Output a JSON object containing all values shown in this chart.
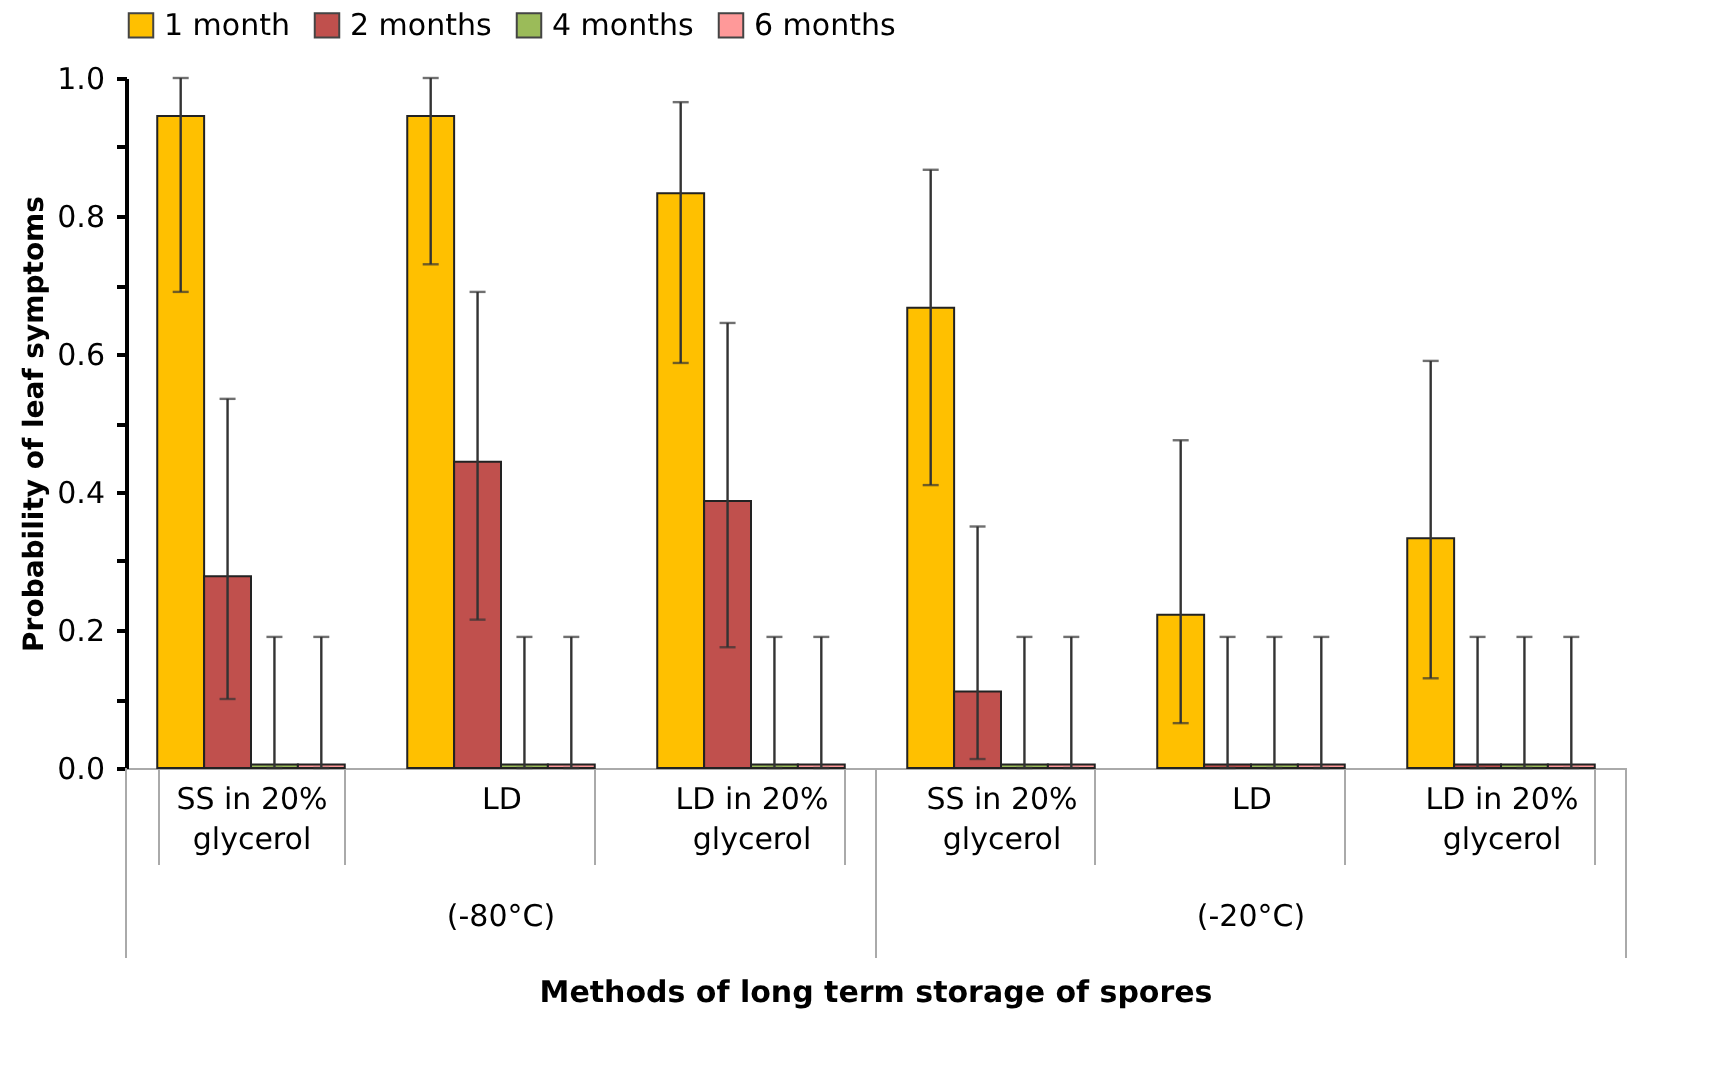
{
  "chart_data": {
    "type": "bar",
    "xlabel": "Methods of long term storage of spores",
    "ylabel": "Probability of leaf symptoms",
    "categories": [
      "SS in 20% glycerol",
      "LD",
      "LD in 20% glycerol",
      "SS in 20% glycerol",
      "LD",
      "LD in 20% glycerol"
    ],
    "annotations": [
      "(-80°C)",
      "(-20°C)"
    ],
    "series": [
      {
        "name": "1 month",
        "color": "#ffc000",
        "values": [
          0.945,
          0.945,
          0.833,
          0.667,
          0.222,
          0.333
        ],
        "errors": [
          [
            0.69,
            1.0
          ],
          [
            0.73,
            1.0
          ],
          [
            0.587,
            0.965
          ],
          [
            0.41,
            0.867
          ],
          [
            0.065,
            0.475
          ],
          [
            0.13,
            0.59
          ]
        ]
      },
      {
        "name": "2 months",
        "color": "#c0504d",
        "values": [
          0.278,
          0.444,
          0.387,
          0.111,
          0.005,
          0.005
        ],
        "errors": [
          [
            0.1,
            0.535
          ],
          [
            0.215,
            0.69
          ],
          [
            0.175,
            0.645
          ],
          [
            0.013,
            0.35
          ],
          [
            0,
            0.19
          ],
          [
            0,
            0.19
          ]
        ]
      },
      {
        "name": "4 months",
        "color": "#9bbb59",
        "values": [
          0.005,
          0.005,
          0.005,
          0.005,
          0.005,
          0.005
        ],
        "errors": [
          [
            0,
            0.19
          ],
          [
            0,
            0.19
          ],
          [
            0,
            0.19
          ],
          [
            0,
            0.19
          ],
          [
            0,
            0.19
          ],
          [
            0,
            0.19
          ]
        ]
      },
      {
        "name": "6 months",
        "color": "#ff9999",
        "values": [
          0.005,
          0.005,
          0.005,
          0.005,
          0.005,
          0.005
        ],
        "errors": [
          [
            0,
            0.19
          ],
          [
            0,
            0.19
          ],
          [
            0,
            0.19
          ],
          [
            0,
            0.19
          ],
          [
            0,
            0.19
          ],
          [
            0,
            0.19
          ]
        ]
      }
    ],
    "ylim": [
      0,
      1.0
    ],
    "yticks": [
      {
        "value": 0,
        "label": "0.0"
      },
      {
        "value": 0.1,
        "label": null
      },
      {
        "value": 0.2,
        "label": "0.2"
      },
      {
        "value": 0.3,
        "label": null
      },
      {
        "value": 0.4,
        "label": "0.4"
      },
      {
        "value": 0.5,
        "label": null
      },
      {
        "value": 0.6,
        "label": "0.6"
      },
      {
        "value": 0.7,
        "label": null
      },
      {
        "value": 0.8,
        "label": "0.8"
      },
      {
        "value": 0.9,
        "label": null
      },
      {
        "value": 1.0,
        "label": "1.0"
      }
    ],
    "grid": false,
    "legend": "top"
  }
}
